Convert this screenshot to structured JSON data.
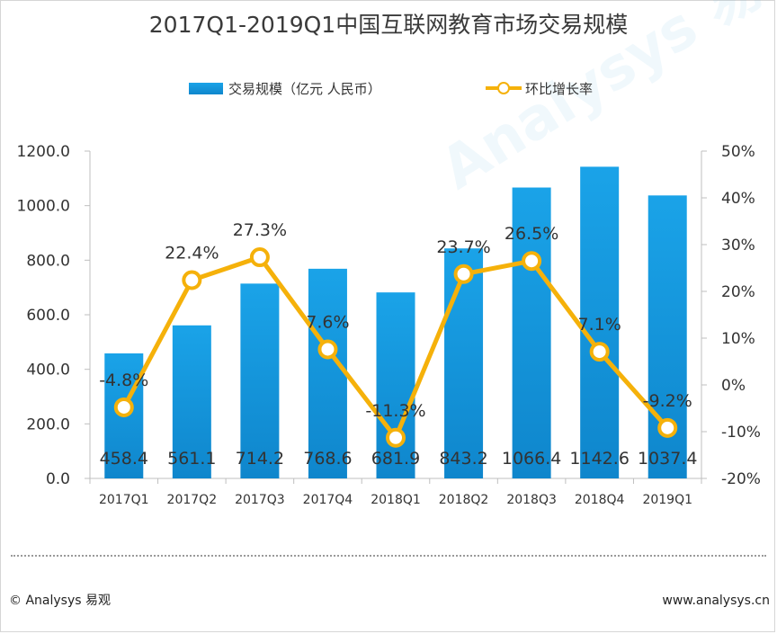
{
  "watermark": "Analysys 易观",
  "footer": {
    "copyright": "© Analysys 易观",
    "website": "www.analysys.cn"
  },
  "chart_data": {
    "type": "bar",
    "title": "2017Q1-2019Q1中国互联网教育市场交易规模",
    "categories": [
      "2017Q1",
      "2017Q2",
      "2017Q3",
      "2017Q4",
      "2018Q1",
      "2018Q2",
      "2018Q3",
      "2018Q4",
      "2019Q1"
    ],
    "series": [
      {
        "name": "交易规模（亿元 人民币）",
        "type": "bar",
        "axis": "left",
        "values": [
          458.4,
          561.1,
          714.2,
          768.6,
          681.9,
          843.2,
          1066.4,
          1142.6,
          1037.4
        ],
        "labels": [
          "458.4",
          "561.1",
          "714.2",
          "768.6",
          "681.9",
          "843.2",
          "1066.4",
          "1142.6",
          "1037.4"
        ]
      },
      {
        "name": "环比增长率",
        "type": "line",
        "axis": "right",
        "values": [
          -4.8,
          22.4,
          27.3,
          7.6,
          -11.3,
          23.7,
          26.5,
          7.1,
          -9.2
        ],
        "labels": [
          "-4.8%",
          "22.4%",
          "27.3%",
          "7.6%",
          "-11.3%",
          "23.7%",
          "26.5%",
          "7.1%",
          "-9.2%"
        ]
      }
    ],
    "y_left": {
      "min": 0,
      "max": 1200,
      "ticks": [
        "0.0",
        "200.0",
        "400.0",
        "600.0",
        "800.0",
        "1000.0",
        "1200.0"
      ]
    },
    "y_right": {
      "min": -20,
      "max": 50,
      "ticks": [
        "-20%",
        "-10%",
        "0%",
        "10%",
        "20%",
        "30%",
        "40%",
        "50%"
      ]
    },
    "legend_position": "top",
    "colors": {
      "bar_top": "#1aa3e8",
      "bar_bottom": "#0f86cc",
      "line": "#f5b10a",
      "axis": "#bfbfbf"
    }
  }
}
